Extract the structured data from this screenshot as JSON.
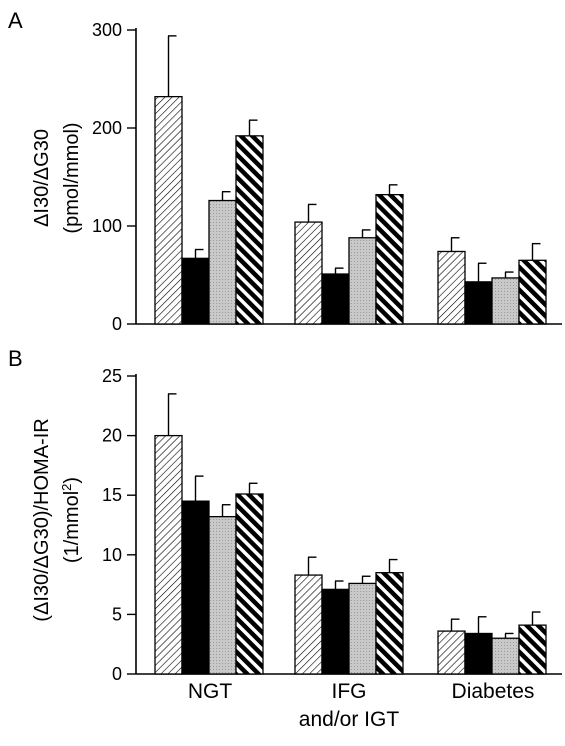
{
  "chart_data": [
    {
      "panel": "A",
      "type": "bar",
      "ylabel_line1": "ΔI30/ΔG30",
      "ylabel_line2": "(pmol/mmol)",
      "ylim": [
        0,
        300
      ],
      "yticks": [
        0,
        100,
        200,
        300
      ],
      "categories": [
        "NGT",
        "IFG and/or IGT",
        "Diabetes"
      ],
      "series": [
        {
          "pattern": "fine-hatch",
          "values": [
            232,
            104,
            74
          ],
          "errors": [
            62,
            18,
            14
          ]
        },
        {
          "pattern": "solid-black",
          "values": [
            67,
            51,
            43
          ],
          "errors": [
            9,
            6,
            19
          ]
        },
        {
          "pattern": "light-gray",
          "values": [
            126,
            88,
            47
          ],
          "errors": [
            9,
            8,
            6
          ]
        },
        {
          "pattern": "bold-hatch",
          "values": [
            192,
            132,
            65
          ],
          "errors": [
            16,
            10,
            17
          ]
        }
      ]
    },
    {
      "panel": "B",
      "type": "bar",
      "ylabel_line1": "(ΔI30/ΔG30)/HOMA-IR",
      "ylabel_line2": "(1/mmol2)",
      "ylim": [
        0,
        25
      ],
      "yticks": [
        0,
        5,
        10,
        15,
        20,
        25
      ],
      "categories": [
        "NGT",
        "IFG and/or IGT",
        "Diabetes"
      ],
      "series": [
        {
          "pattern": "fine-hatch",
          "values": [
            20.0,
            8.3,
            3.6
          ],
          "errors": [
            3.5,
            1.5,
            1.0
          ]
        },
        {
          "pattern": "solid-black",
          "values": [
            14.5,
            7.1,
            3.4
          ],
          "errors": [
            2.1,
            0.7,
            1.4
          ]
        },
        {
          "pattern": "light-gray",
          "values": [
            13.2,
            7.6,
            3.0
          ],
          "errors": [
            1.0,
            0.6,
            0.4
          ]
        },
        {
          "pattern": "bold-hatch",
          "values": [
            15.1,
            8.5,
            4.1
          ],
          "errors": [
            0.9,
            1.1,
            1.1
          ]
        }
      ]
    }
  ],
  "labels": {
    "panel_a": "A",
    "panel_b": "B",
    "cat_ngt": "NGT",
    "cat_ifg_line1": "IFG",
    "cat_ifg_line2": "and/or IGT",
    "cat_diabetes": "Diabetes"
  }
}
